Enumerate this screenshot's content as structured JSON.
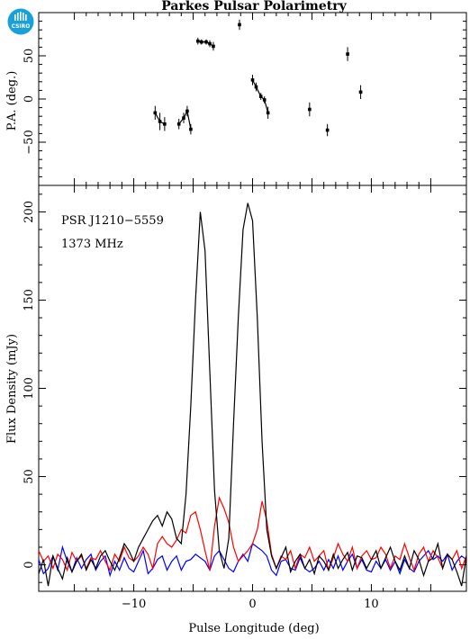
{
  "title": "Parkes Pulsar Polarimetry",
  "logo_text": "CSIRO",
  "colors": {
    "total": "#000000",
    "linear": "#ff0000",
    "circular": "#0000ff",
    "logo": "#1aa0d8"
  },
  "chart_data": [
    {
      "panel": "position-angle",
      "type": "scatter",
      "xlabel": "",
      "ylabel": "P.A. (deg.)",
      "xlim": [
        -18,
        18
      ],
      "ylim": [
        -100,
        100
      ],
      "yticks": [
        -50,
        0,
        50
      ],
      "points": [
        {
          "x": -8.2,
          "y": -16,
          "err": 8
        },
        {
          "x": -7.8,
          "y": -26,
          "err": 10
        },
        {
          "x": -7.4,
          "y": -29,
          "err": 8
        },
        {
          "x": -6.2,
          "y": -29,
          "err": 6
        },
        {
          "x": -5.8,
          "y": -22,
          "err": 6
        },
        {
          "x": -5.5,
          "y": -14,
          "err": 6
        },
        {
          "x": -5.2,
          "y": -35,
          "err": 6
        },
        {
          "x": -4.6,
          "y": 67,
          "err": 4
        },
        {
          "x": -4.3,
          "y": 66,
          "err": 3
        },
        {
          "x": -3.9,
          "y": 66,
          "err": 3
        },
        {
          "x": -3.6,
          "y": 64,
          "err": 4
        },
        {
          "x": -3.3,
          "y": 61,
          "err": 5
        },
        {
          "x": -1.1,
          "y": 86,
          "err": 6
        },
        {
          "x": 0.0,
          "y": 22,
          "err": 6
        },
        {
          "x": 0.3,
          "y": 14,
          "err": 5
        },
        {
          "x": 0.7,
          "y": 3,
          "err": 4
        },
        {
          "x": 1.0,
          "y": -1,
          "err": 4
        },
        {
          "x": 1.3,
          "y": -16,
          "err": 7
        },
        {
          "x": 4.8,
          "y": -12,
          "err": 8
        },
        {
          "x": 6.3,
          "y": -36,
          "err": 7
        },
        {
          "x": 8.0,
          "y": 52,
          "err": 8
        },
        {
          "x": 9.1,
          "y": 8,
          "err": 8
        }
      ],
      "lines": [
        {
          "x": [
            -8.2,
            -7.8,
            -7.4
          ]
        },
        {
          "x": [
            -6.2,
            -5.8,
            -5.5,
            -5.2
          ]
        },
        {
          "x": [
            -4.6,
            -4.3,
            -3.9,
            -3.6,
            -3.3
          ]
        },
        {
          "x": [
            0.0,
            0.3,
            0.7,
            1.0,
            1.3
          ]
        }
      ]
    },
    {
      "panel": "flux-profile",
      "type": "line",
      "xlabel": "Pulse Longitude (deg)",
      "ylabel": "Flux Density (mJy)",
      "xlim": [
        -18,
        18
      ],
      "ylim": [
        -15,
        215
      ],
      "xticks": [
        -10,
        0,
        10
      ],
      "yticks": [
        0,
        50,
        100,
        150,
        200
      ],
      "annotations": [
        "PSR J1210−5559",
        "1373 MHz"
      ],
      "x": [
        -18.0,
        -17.6,
        -17.2,
        -16.8,
        -16.4,
        -16.0,
        -15.6,
        -15.2,
        -14.8,
        -14.4,
        -14.0,
        -13.6,
        -13.2,
        -12.8,
        -12.4,
        -12.0,
        -11.6,
        -11.2,
        -10.8,
        -10.4,
        -10.0,
        -9.6,
        -9.2,
        -8.8,
        -8.4,
        -8.0,
        -7.6,
        -7.2,
        -6.8,
        -6.4,
        -6.0,
        -5.6,
        -5.2,
        -4.8,
        -4.4,
        -4.0,
        -3.6,
        -3.2,
        -2.8,
        -2.4,
        -2.0,
        -1.6,
        -1.2,
        -0.8,
        -0.4,
        0.0,
        0.4,
        0.8,
        1.2,
        1.6,
        2.0,
        2.4,
        2.8,
        3.2,
        3.6,
        4.0,
        4.4,
        4.8,
        5.2,
        5.6,
        6.0,
        6.4,
        6.8,
        7.2,
        7.6,
        8.0,
        8.4,
        8.8,
        9.2,
        9.6,
        10.0,
        10.4,
        10.8,
        11.2,
        11.6,
        12.0,
        12.4,
        12.8,
        13.2,
        13.6,
        14.0,
        14.4,
        14.8,
        15.2,
        15.6,
        16.0,
        16.4,
        16.8,
        17.2,
        17.6,
        18.0
      ],
      "series": [
        {
          "color": "#000000",
          "values": [
            -5,
            3,
            -12,
            5,
            -2,
            -8,
            4,
            -4,
            2,
            6,
            -3,
            3,
            -2,
            5,
            8,
            2,
            -3,
            4,
            12,
            8,
            2,
            10,
            15,
            20,
            25,
            28,
            22,
            30,
            26,
            15,
            12,
            40,
            90,
            150,
            200,
            178,
            110,
            42,
            8,
            -2,
            15,
            80,
            140,
            190,
            205,
            195,
            140,
            70,
            20,
            5,
            -2,
            4,
            10,
            -4,
            2,
            6,
            -2,
            3,
            -5,
            5,
            2,
            -3,
            6,
            -2,
            3,
            7,
            -3,
            5,
            4,
            -2,
            3,
            8,
            -2,
            4,
            10,
            2,
            -3,
            5,
            -2,
            8,
            3,
            -6,
            2,
            4,
            12,
            -2,
            6,
            3,
            -4,
            -12,
            5
          ]
        },
        {
          "color": "#ff0000",
          "values": [
            8,
            2,
            5,
            -2,
            6,
            3,
            -3,
            7,
            2,
            5,
            -2,
            4,
            3,
            8,
            2,
            -3,
            6,
            2,
            10,
            4,
            2,
            5,
            10,
            6,
            -2,
            12,
            16,
            12,
            10,
            14,
            20,
            18,
            28,
            30,
            20,
            8,
            -3,
            22,
            38,
            32,
            24,
            10,
            2,
            5,
            8,
            12,
            20,
            36,
            25,
            6,
            -2,
            5,
            3,
            8,
            -2,
            6,
            4,
            10,
            2,
            5,
            8,
            -3,
            4,
            12,
            6,
            2,
            10,
            -2,
            5,
            8,
            3,
            4,
            10,
            6,
            -2,
            5,
            3,
            12,
            4,
            -3,
            6,
            10,
            2,
            8,
            4,
            -2,
            6,
            3,
            8,
            -2,
            5
          ]
        },
        {
          "color": "#0000ff",
          "values": [
            3,
            -5,
            -2,
            5,
            -3,
            10,
            2,
            -4,
            4,
            -2,
            3,
            6,
            -3,
            2,
            5,
            -6,
            2,
            -3,
            4,
            -2,
            -4,
            2,
            8,
            -5,
            -2,
            3,
            5,
            -3,
            2,
            5,
            -3,
            2,
            3,
            6,
            4,
            2,
            -3,
            5,
            8,
            3,
            -2,
            -4,
            2,
            6,
            2,
            12,
            10,
            8,
            5,
            -3,
            -6,
            2,
            3,
            -2,
            -3,
            4,
            -2,
            -4,
            -2,
            2,
            -3,
            3,
            -2,
            5,
            -3,
            2,
            6,
            -2,
            3,
            -3,
            -4,
            2,
            -2,
            3,
            -3,
            2,
            -5,
            3,
            -2,
            -4,
            2,
            5,
            8,
            3,
            5,
            2,
            6,
            -3,
            2,
            5,
            3
          ]
        }
      ]
    }
  ]
}
